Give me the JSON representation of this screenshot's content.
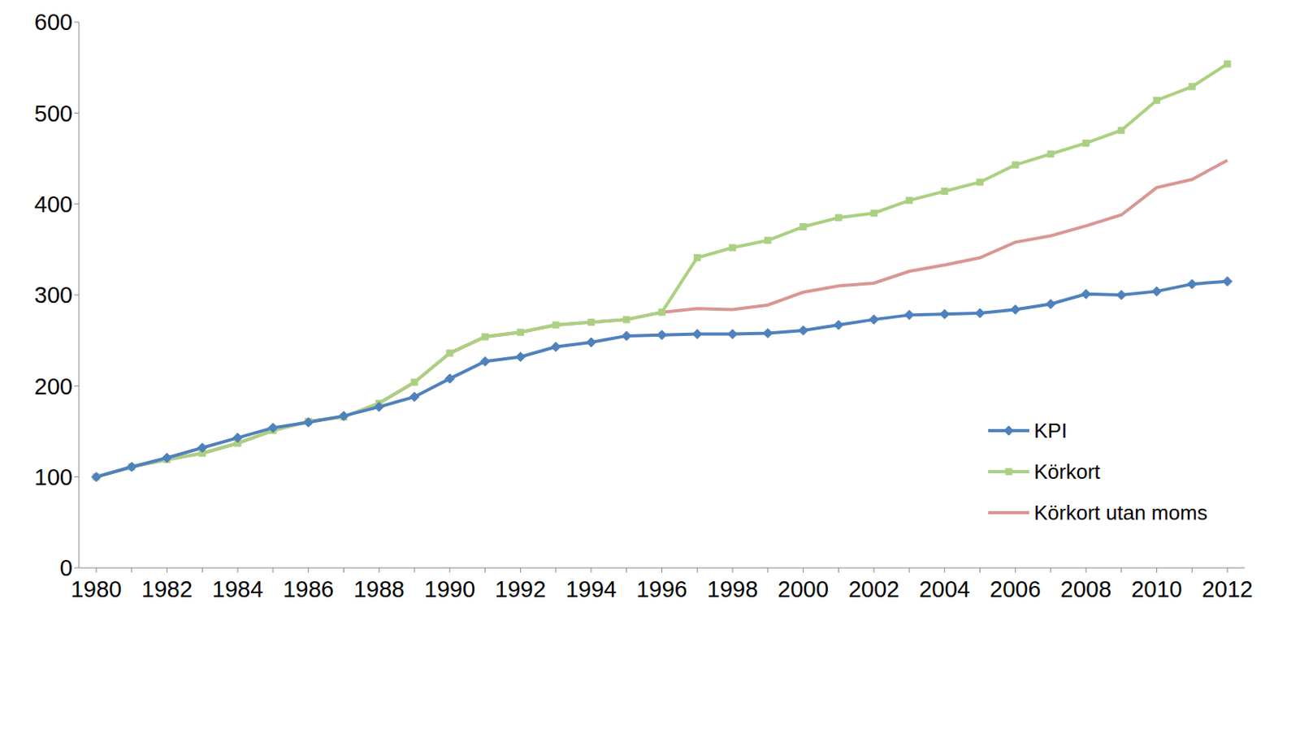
{
  "chart_data": {
    "type": "line",
    "categories": [
      "1980",
      null,
      "1982",
      null,
      "1984",
      null,
      "1986",
      null,
      "1988",
      null,
      "1990",
      null,
      "1992",
      null,
      "1994",
      null,
      "1996",
      null,
      "1998",
      null,
      "2000",
      null,
      "2002",
      null,
      "2004",
      null,
      "2006",
      null,
      "2008",
      null,
      "2010",
      null,
      "2012"
    ],
    "series": [
      {
        "name": "KPI",
        "color": "#4f81bd",
        "marker": "diamond",
        "values": [
          100,
          111,
          121,
          132,
          143,
          154,
          160,
          167,
          177,
          188,
          208,
          227,
          232,
          243,
          248,
          255,
          256,
          257,
          257,
          258,
          261,
          267,
          273,
          278,
          279,
          280,
          284,
          290,
          301,
          300,
          304,
          312,
          315
        ]
      },
      {
        "name": "Körkort",
        "color": "#abd082",
        "marker": "square",
        "values": [
          100,
          111,
          119,
          126,
          137,
          151,
          161,
          166,
          181,
          204,
          236,
          254,
          259,
          267,
          270,
          273,
          281,
          341,
          352,
          360,
          375,
          385,
          390,
          404,
          414,
          424,
          443,
          455,
          467,
          481,
          514,
          529,
          554
        ]
      },
      {
        "name": "Körkort utan moms",
        "color": "#d99694",
        "marker": "none",
        "values": [
          100,
          111,
          119,
          126,
          137,
          151,
          161,
          166,
          181,
          204,
          236,
          254,
          259,
          267,
          270,
          273,
          281,
          285,
          284,
          289,
          303,
          310,
          313,
          326,
          333,
          341,
          358,
          365,
          376,
          388,
          418,
          427,
          448
        ]
      }
    ],
    "ylim": [
      0,
      600
    ],
    "yticks": [
      0,
      100,
      200,
      300,
      400,
      500,
      600
    ],
    "grid": false,
    "legend": "right"
  }
}
